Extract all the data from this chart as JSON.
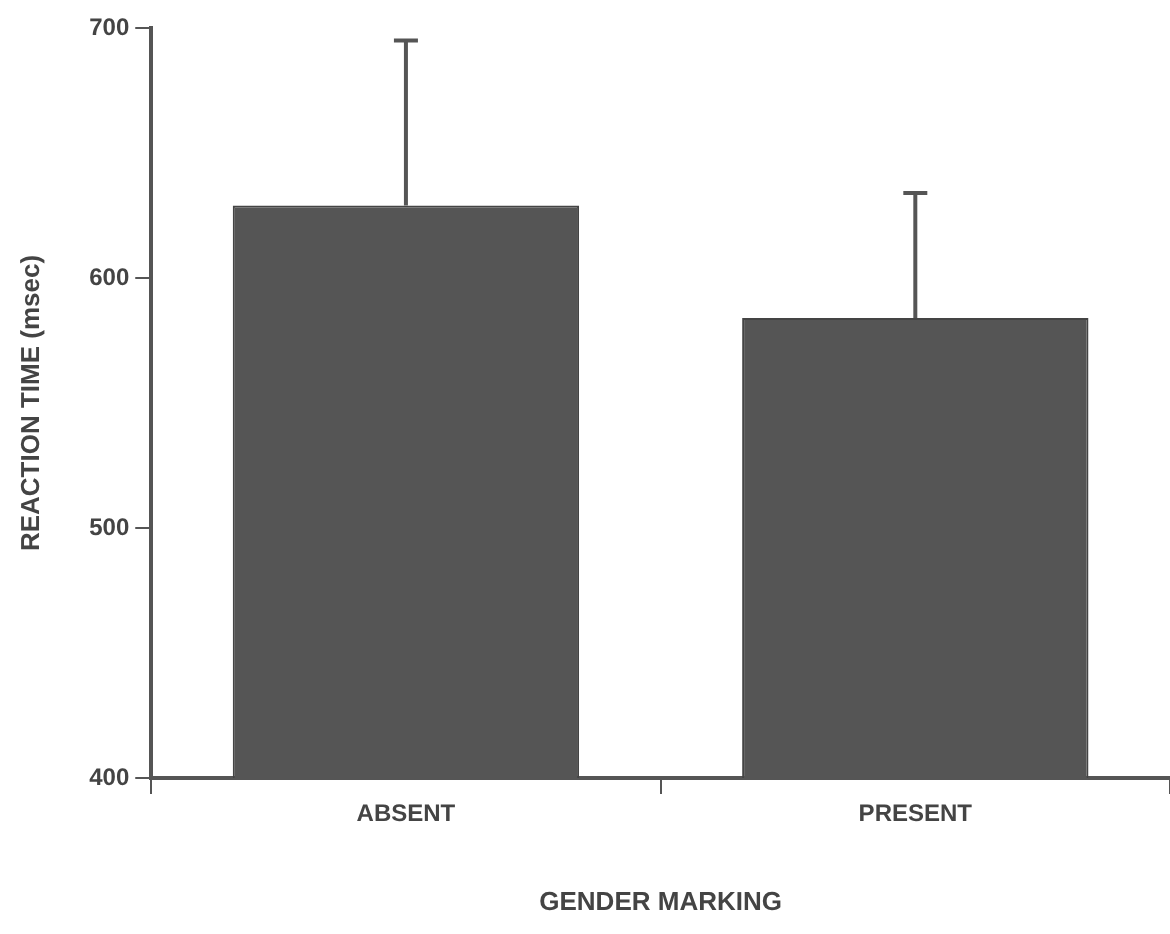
{
  "chart_data": {
    "type": "bar",
    "xlabel": "GENDER MARKING",
    "ylabel": "REACTION TIME (msec)",
    "categories": [
      "ABSENT",
      "PRESENT"
    ],
    "values": [
      629,
      584
    ],
    "color": "#555555",
    "errors": [
      [
        629,
        695
      ],
      [
        584,
        634
      ]
    ],
    "ylim": [
      400,
      700
    ],
    "yticks": [
      400,
      500,
      600,
      700
    ],
    "grid": false,
    "legend": false
  }
}
